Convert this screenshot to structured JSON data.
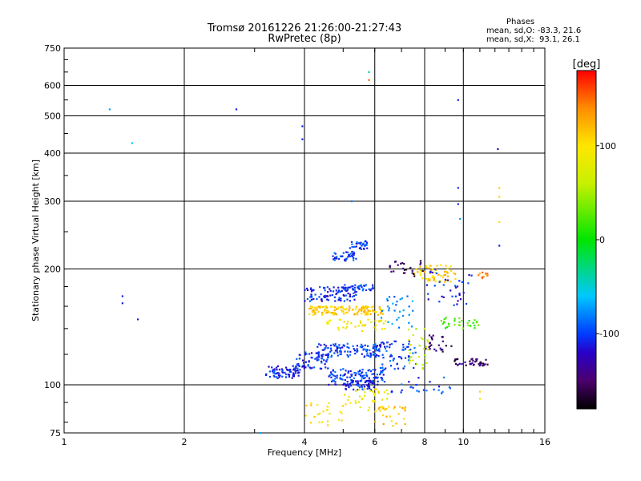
{
  "chart_data": {
    "type": "scatter",
    "title": "Tromsø 20161226 21:26:00-21:27:43",
    "subtitle": "RwPretec (8p)",
    "xlabel": "Frequency [MHz]",
    "ylabel": "Stationary phase Virtual Height [km]",
    "xscale": "log",
    "yscale": "log",
    "xlim": [
      1,
      16
    ],
    "ylim": [
      75,
      750
    ],
    "x_ticks": [
      1,
      2,
      4,
      6,
      8,
      10,
      16
    ],
    "y_ticks": [
      75,
      100,
      200,
      300,
      400,
      500,
      600,
      750
    ],
    "grid": true,
    "colorbar": {
      "label": "[deg]",
      "range": [
        -180,
        180
      ],
      "ticks": [
        100,
        0,
        -100
      ],
      "colormap": "rainbow"
    },
    "phases": {
      "heading": "Phases",
      "o_mode": "mean, sd,O: -83.3, 21.6",
      "x_mode": "mean, sd,X:  93.1, 26.1"
    },
    "clusters": [
      {
        "f": [
          3.2,
          3.9
        ],
        "h": [
          104,
          112
        ],
        "phase": -110,
        "n": 70
      },
      {
        "f": [
          3.8,
          4.6
        ],
        "h": [
          110,
          122
        ],
        "phase": -105,
        "n": 70
      },
      {
        "f": [
          4.3,
          6.2
        ],
        "h": [
          118,
          128
        ],
        "phase": -100,
        "n": 110
      },
      {
        "f": [
          4.6,
          6.4
        ],
        "h": [
          100,
          110
        ],
        "phase": -100,
        "n": 110
      },
      {
        "f": [
          5.0,
          6.0
        ],
        "h": [
          97,
          103
        ],
        "phase": -110,
        "n": 50
      },
      {
        "f": [
          6.0,
          7.6
        ],
        "h": [
          110,
          130
        ],
        "phase": -100,
        "n": 70
      },
      {
        "f": [
          4.0,
          5.4
        ],
        "h": [
          165,
          180
        ],
        "phase": -105,
        "n": 90
      },
      {
        "f": [
          5.0,
          6.0
        ],
        "h": [
          176,
          182
        ],
        "phase": -100,
        "n": 40
      },
      {
        "f": [
          4.7,
          5.4
        ],
        "h": [
          210,
          222
        ],
        "phase": -100,
        "n": 40
      },
      {
        "f": [
          5.2,
          5.8
        ],
        "h": [
          225,
          238
        ],
        "phase": -100,
        "n": 30
      },
      {
        "f": [
          4.1,
          6.3
        ],
        "h": [
          152,
          160
        ],
        "phase": 110,
        "n": 130
      },
      {
        "f": [
          4.4,
          6.5
        ],
        "h": [
          138,
          148
        ],
        "phase": 95,
        "n": 40
      },
      {
        "f": [
          5.0,
          6.5
        ],
        "h": [
          85,
          98
        ],
        "phase": 90,
        "n": 40
      },
      {
        "f": [
          6.0,
          7.2
        ],
        "h": [
          78,
          88
        ],
        "phase": 120,
        "n": 25
      },
      {
        "f": [
          3.9,
          5.0
        ],
        "h": [
          78,
          90
        ],
        "phase": 100,
        "n": 25
      },
      {
        "f": [
          7.5,
          9.6
        ],
        "h": [
          185,
          205
        ],
        "phase": 110,
        "n": 60
      },
      {
        "f": [
          9.5,
          11.5
        ],
        "h": [
          112,
          117
        ],
        "phase": -150,
        "n": 40
      },
      {
        "f": [
          8.0,
          9.5
        ],
        "h": [
          122,
          135
        ],
        "phase": -150,
        "n": 25
      },
      {
        "f": [
          6.5,
          8.0
        ],
        "h": [
          190,
          210
        ],
        "phase": -155,
        "n": 25
      },
      {
        "f": [
          8.8,
          11.0
        ],
        "h": [
          140,
          150
        ],
        "phase": 20,
        "n": 30
      },
      {
        "f": [
          7.2,
          8.2
        ],
        "h": [
          110,
          140
        ],
        "phase": 60,
        "n": 30
      },
      {
        "f": [
          10.8,
          11.5
        ],
        "h": [
          188,
          196
        ],
        "phase": 140,
        "n": 12
      },
      {
        "f": [
          8.0,
          10.5
        ],
        "h": [
          160,
          200
        ],
        "phase": -110,
        "n": 35
      },
      {
        "f": [
          6.2,
          7.5
        ],
        "h": [
          140,
          170
        ],
        "phase": -80,
        "n": 30
      },
      {
        "f": [
          6.5,
          9.5
        ],
        "h": [
          95,
          105
        ],
        "phase": -100,
        "n": 25
      }
    ],
    "points": [
      {
        "x": 1.3,
        "y": 520,
        "phase": -70
      },
      {
        "x": 1.48,
        "y": 425,
        "phase": -60
      },
      {
        "x": 1.4,
        "y": 170,
        "phase": -110
      },
      {
        "x": 1.4,
        "y": 163,
        "phase": -110
      },
      {
        "x": 1.53,
        "y": 148,
        "phase": -110
      },
      {
        "x": 2.7,
        "y": 520,
        "phase": -110
      },
      {
        "x": 3.95,
        "y": 470,
        "phase": -110
      },
      {
        "x": 3.95,
        "y": 435,
        "phase": -110
      },
      {
        "x": 5.25,
        "y": 300,
        "phase": -80
      },
      {
        "x": 5.8,
        "y": 650,
        "phase": -40
      },
      {
        "x": 5.8,
        "y": 620,
        "phase": 150
      },
      {
        "x": 9.7,
        "y": 550,
        "phase": -110
      },
      {
        "x": 9.7,
        "y": 325,
        "phase": -110
      },
      {
        "x": 9.7,
        "y": 295,
        "phase": -110
      },
      {
        "x": 9.8,
        "y": 270,
        "phase": -70
      },
      {
        "x": 12.2,
        "y": 410,
        "phase": -120
      },
      {
        "x": 12.3,
        "y": 325,
        "phase": 110
      },
      {
        "x": 12.3,
        "y": 308,
        "phase": 110
      },
      {
        "x": 12.3,
        "y": 265,
        "phase": 90
      },
      {
        "x": 12.3,
        "y": 230,
        "phase": -110
      },
      {
        "x": 3.1,
        "y": 75,
        "phase": -70
      },
      {
        "x": 11.0,
        "y": 96,
        "phase": 110
      },
      {
        "x": 11.0,
        "y": 92,
        "phase": 90
      }
    ]
  }
}
